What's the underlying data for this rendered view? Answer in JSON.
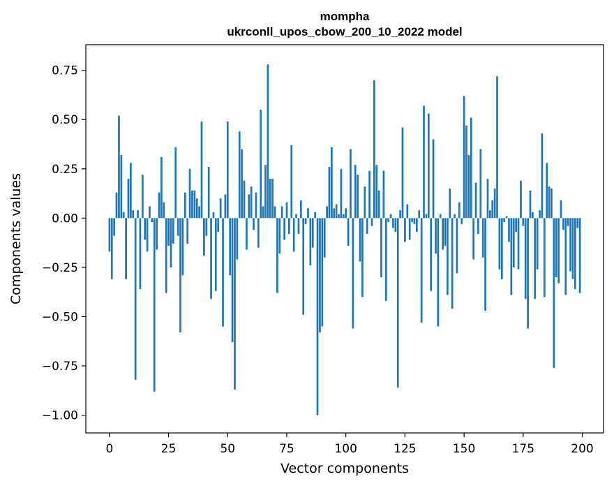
{
  "chart_data": {
    "type": "bar",
    "title_line1": "mompha",
    "title_line2": "ukrconll_upos_cbow_200_10_2022 model",
    "xlabel": "Vector components",
    "ylabel": "Components values",
    "xlim": [
      -10,
      209
    ],
    "ylim": [
      -1.09,
      0.88
    ],
    "xticks": [
      0,
      25,
      50,
      75,
      100,
      125,
      150,
      175,
      200
    ],
    "xtick_labels": [
      "0",
      "25",
      "50",
      "75",
      "100",
      "125",
      "150",
      "175",
      "200"
    ],
    "yticks": [
      0.75,
      0.5,
      0.25,
      0.0,
      -0.25,
      -0.5,
      -0.75,
      -1.0
    ],
    "ytick_labels": [
      "0.75",
      "0.50",
      "0.25",
      "0.00",
      "−0.25",
      "−0.50",
      "−0.75",
      "−1.00"
    ],
    "bar_color": "#1f77b4",
    "x": [
      0,
      1,
      2,
      3,
      4,
      5,
      6,
      7,
      8,
      9,
      10,
      11,
      12,
      13,
      14,
      15,
      16,
      17,
      18,
      19,
      20,
      21,
      22,
      23,
      24,
      25,
      26,
      27,
      28,
      29,
      30,
      31,
      32,
      33,
      34,
      35,
      36,
      37,
      38,
      39,
      40,
      41,
      42,
      43,
      44,
      45,
      46,
      47,
      48,
      49,
      50,
      51,
      52,
      53,
      54,
      55,
      56,
      57,
      58,
      59,
      60,
      61,
      62,
      63,
      64,
      65,
      66,
      67,
      68,
      69,
      70,
      71,
      72,
      73,
      74,
      75,
      76,
      77,
      78,
      79,
      80,
      81,
      82,
      83,
      84,
      85,
      86,
      87,
      88,
      89,
      90,
      91,
      92,
      93,
      94,
      95,
      96,
      97,
      98,
      99,
      100,
      101,
      102,
      103,
      104,
      105,
      106,
      107,
      108,
      109,
      110,
      111,
      112,
      113,
      114,
      115,
      116,
      117,
      118,
      119,
      120,
      121,
      122,
      123,
      124,
      125,
      126,
      127,
      128,
      129,
      130,
      131,
      132,
      133,
      134,
      135,
      136,
      137,
      138,
      139,
      140,
      141,
      142,
      143,
      144,
      145,
      146,
      147,
      148,
      149,
      150,
      151,
      152,
      153,
      154,
      155,
      156,
      157,
      158,
      159,
      160,
      161,
      162,
      163,
      164,
      165,
      166,
      167,
      168,
      169,
      170,
      171,
      172,
      173,
      174,
      175,
      176,
      177,
      178,
      179,
      180,
      181,
      182,
      183,
      184,
      185,
      186,
      187,
      188,
      189,
      190,
      191,
      192,
      193,
      194,
      195,
      196,
      197,
      198,
      199
    ],
    "values": [
      -0.17,
      -0.31,
      -0.09,
      0.13,
      0.52,
      0.32,
      0.03,
      -0.31,
      0.2,
      0.28,
      0.04,
      -0.82,
      0.04,
      -0.36,
      0.22,
      -0.11,
      -0.17,
      0.06,
      -0.02,
      -0.88,
      -0.16,
      0.13,
      0.31,
      0.08,
      -0.38,
      -0.14,
      -0.25,
      -0.13,
      0.36,
      -0.09,
      -0.58,
      -0.29,
      0.13,
      -0.13,
      0.25,
      0.14,
      0.14,
      0.1,
      0.06,
      0.49,
      -0.19,
      -0.09,
      0.26,
      -0.41,
      0.03,
      -0.37,
      -0.07,
      0.1,
      -0.55,
      0.12,
      0.49,
      -0.29,
      -0.63,
      -0.87,
      -0.21,
      0.44,
      0.35,
      0.19,
      -0.16,
      0.12,
      0.16,
      -0.06,
      0.13,
      -0.15,
      0.55,
      0.06,
      0.27,
      0.78,
      0.2,
      0.2,
      0.06,
      -0.38,
      -0.18,
      0.06,
      -0.11,
      0.08,
      -0.08,
      0.37,
      -0.17,
      0.02,
      -0.08,
      0.09,
      -0.49,
      -0.03,
      0.05,
      -0.24,
      -0.15,
      0.03,
      -1.0,
      -0.58,
      -0.55,
      -0.2,
      0.06,
      0.26,
      0.36,
      0.05,
      0.07,
      0.02,
      0.25,
      0.02,
      0.05,
      -0.14,
      0.35,
      -0.56,
      0.27,
      0.22,
      -0.22,
      -0.4,
      0.16,
      -0.08,
      0.24,
      -0.04,
      0.7,
      0.27,
      0.14,
      -0.3,
      0.24,
      -0.42,
      -0.02,
      0.02,
      -0.05,
      -0.07,
      -0.86,
      0.04,
      0.46,
      -0.12,
      0.07,
      -0.11,
      -0.02,
      -0.03,
      -0.07,
      0.04,
      -0.53,
      0.57,
      0.02,
      0.53,
      -0.37,
      0.4,
      -0.18,
      -0.55,
      0.02,
      -0.16,
      -0.14,
      -0.39,
      0.15,
      -0.46,
      0.02,
      -0.28,
      0.08,
      -0.03,
      0.62,
      0.47,
      0.32,
      0.51,
      -0.21,
      0.18,
      -0.08,
      0.35,
      -0.2,
      -0.47,
      0.2,
      0.04,
      0.09,
      0.15,
      0.72,
      -0.26,
      -0.31,
      -0.02,
      0.01,
      -0.12,
      -0.39,
      -0.25,
      -0.07,
      -0.26,
      0.19,
      -0.04,
      -0.41,
      -0.56,
      0.14,
      0.03,
      -0.41,
      -0.26,
      0.04,
      0.43,
      -0.4,
      0.28,
      0.16,
      0.15,
      -0.76,
      -0.3,
      -0.33,
      0.09,
      -0.06,
      -0.39,
      -0.04,
      -0.27,
      -0.31,
      -0.36,
      -0.05,
      -0.38
    ]
  }
}
